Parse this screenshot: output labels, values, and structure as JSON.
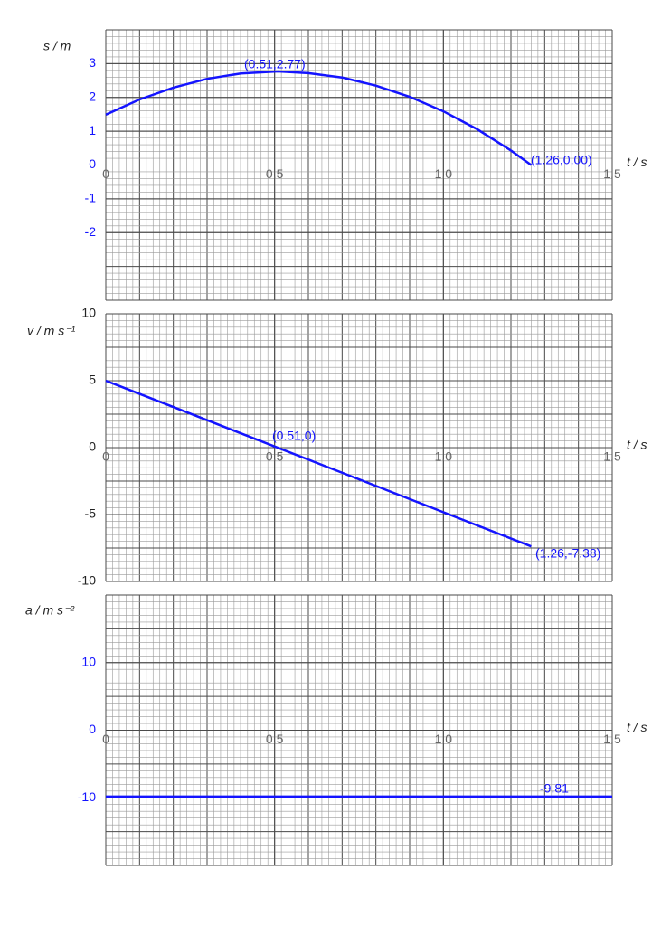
{
  "chart_data": [
    {
      "type": "line",
      "ylabel": "s / m",
      "xlabel": "t / s",
      "x": [
        0,
        0.1,
        0.2,
        0.3,
        0.4,
        0.51,
        0.6,
        0.7,
        0.8,
        0.9,
        1.0,
        1.1,
        1.2,
        1.26
      ],
      "series": [
        {
          "color": "#1414ff",
          "values": [
            1.49,
            1.94,
            2.29,
            2.55,
            2.71,
            2.77,
            2.72,
            2.59,
            2.35,
            2.02,
            1.59,
            1.06,
            0.43,
            0.0
          ]
        }
      ],
      "xlim": [
        0,
        1.5
      ],
      "xticks": [
        0,
        0.5,
        {
          "value": 1,
          "label": "1.0"
        },
        1.5
      ],
      "ylim": [
        -4,
        4
      ],
      "yticks": [
        -2,
        -1,
        0,
        1,
        2,
        3
      ],
      "grid": true,
      "annotations": [
        "(0.51,2.77)",
        "(1.26,0.00)"
      ]
    },
    {
      "type": "line",
      "ylabel": "v / m s⁻¹",
      "xlabel": "t / s",
      "x": [
        0,
        1.26
      ],
      "series": [
        {
          "color": "#1414ff",
          "values": [
            5.0,
            -7.38
          ]
        }
      ],
      "xlim": [
        0,
        1.5
      ],
      "xticks": [
        0,
        0.5,
        {
          "value": 1,
          "label": "1.0"
        },
        1.5
      ],
      "ylim": [
        -10,
        10
      ],
      "yticks": [
        -10,
        -5,
        0,
        5,
        10
      ],
      "grid": true,
      "annotations": [
        "(0.51,0)",
        "(1.26,-7.38)"
      ]
    },
    {
      "type": "line",
      "ylabel": "a / m s⁻²",
      "xlabel": "t / s",
      "x": [
        0,
        1.5
      ],
      "series": [
        {
          "color": "#1414ff",
          "values": [
            -9.81,
            -9.81
          ]
        }
      ],
      "xlim": [
        0,
        1.5
      ],
      "xticks": [
        0,
        0.5,
        {
          "value": 1,
          "label": "1.0"
        },
        1.5
      ],
      "ylim": [
        -20,
        20
      ],
      "yticks": [
        -10,
        0,
        10
      ],
      "grid": true,
      "annotations": [
        "-9.81"
      ]
    }
  ]
}
